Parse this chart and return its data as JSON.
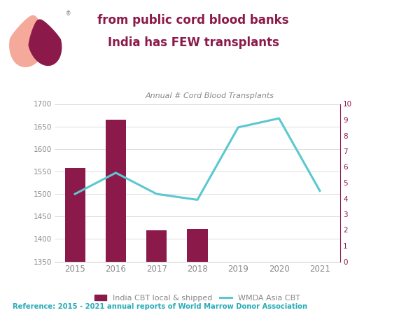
{
  "years": [
    2015,
    2016,
    2017,
    2018,
    2019,
    2020,
    2021
  ],
  "bar_years": [
    2015,
    2016,
    2017,
    2018
  ],
  "bar_values": [
    1557,
    1665,
    1420,
    1422
  ],
  "line_values_left": [
    1500,
    1547,
    1500,
    1487,
    1648,
    1668,
    1507
  ],
  "bar_color": "#8B1A4A",
  "line_color": "#5BC8D0",
  "ylim_left": [
    1350,
    1700
  ],
  "ylim_right": [
    0,
    10
  ],
  "yticks_left": [
    1350,
    1400,
    1450,
    1500,
    1550,
    1600,
    1650,
    1700
  ],
  "yticks_right": [
    0,
    1,
    2,
    3,
    4,
    5,
    6,
    7,
    8,
    9,
    10
  ],
  "title_line1": "India has FEW transplants",
  "title_line2": "from public cord blood banks",
  "subtitle": "Annual # Cord Blood Transplants",
  "title_color": "#8B1A4A",
  "subtitle_color": "#888888",
  "reference_text": "Reference: 2015 - 2021 annual reports of World Marrow Donor Association",
  "reference_color": "#2AACB8",
  "legend_bar_label": "India CBT local & shipped",
  "legend_line_label": "WMDA Asia CBT",
  "right_axis_color": "#8B1A4A",
  "wmda_box_color": "#2AACB8",
  "background_color": "#ffffff",
  "grid_color": "#dddddd",
  "tick_color": "#888888",
  "spine_color": "#cccccc"
}
